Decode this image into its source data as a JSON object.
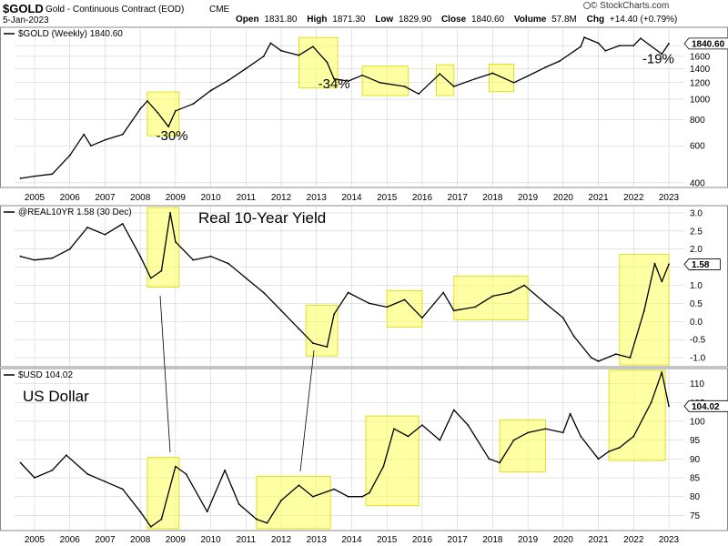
{
  "header": {
    "symbol": "$GOLD",
    "name": "Gold - Continuous Contract (EOD)",
    "exchange": "CME",
    "date": "5-Jan-2023",
    "stats": {
      "open_label": "Open",
      "open": "1831.80",
      "high_label": "High",
      "high": "1871.30",
      "low_label": "Low",
      "low": "1829.90",
      "close_label": "Close",
      "close": "1840.60",
      "volume_label": "Volume",
      "volume": "57.8M",
      "chg_label": "Chg",
      "chg": "+14.40 (+0.79%)"
    },
    "credit": "© StockCharts.com",
    "logo_icon": "stockcharts-logo-icon"
  },
  "year_ticks": [
    "2005",
    "2006",
    "2007",
    "2008",
    "2009",
    "2010",
    "2011",
    "2012",
    "2013",
    "2014",
    "2015",
    "2016",
    "2017",
    "2018",
    "2019",
    "2020",
    "2021",
    "2022",
    "2023"
  ],
  "colors": {
    "highlight": "#ffff66",
    "highlight_border": "#d8d800",
    "line": "#000000",
    "grid": "#c8c8c8",
    "badge_bg": "#ffffff"
  },
  "chart_data": [
    {
      "type": "line",
      "label": "$GOLD (Weekly) 1840.60",
      "ylabel": "",
      "scale": "log",
      "ylim": [
        380,
        2200
      ],
      "yticks": [
        400,
        600,
        800,
        1000,
        1200,
        1400,
        1600,
        1800
      ],
      "last_value": "1840.60",
      "series": [
        {
          "x": [
            2004.6,
            2005.0,
            2005.5,
            2006.0,
            2006.4,
            2006.6,
            2007.0,
            2007.5,
            2008.0,
            2008.2,
            2008.5,
            2008.8,
            2009.0,
            2009.5,
            2010.0,
            2010.5,
            2011.0,
            2011.5,
            2011.7,
            2012.0,
            2012.5,
            2012.9,
            2013.3,
            2013.5,
            2013.9,
            2014.3,
            2014.8,
            2015.5,
            2015.9,
            2016.5,
            2016.9,
            2017.5,
            2018.0,
            2018.6,
            2019.0,
            2019.5,
            2019.9,
            2020.5,
            2020.6,
            2021.0,
            2021.2,
            2021.6,
            2022.0,
            2022.2,
            2022.8,
            2023.0
          ],
          "y": [
            420,
            430,
            440,
            540,
            680,
            600,
            640,
            680,
            900,
            980,
            860,
            740,
            880,
            950,
            1100,
            1230,
            1400,
            1600,
            1850,
            1700,
            1620,
            1780,
            1500,
            1250,
            1220,
            1300,
            1200,
            1150,
            1060,
            1320,
            1150,
            1250,
            1330,
            1200,
            1290,
            1420,
            1520,
            1780,
            1970,
            1850,
            1700,
            1800,
            1800,
            1950,
            1640,
            1840
          ]
        }
      ],
      "annotations": [
        {
          "text": "-30%",
          "x": 2008.9,
          "y": 640
        },
        {
          "text": "-34%",
          "x": 2013.5,
          "y": 1130
        },
        {
          "text": "-19%",
          "x": 2022.7,
          "y": 1480
        }
      ],
      "highlights": [
        [
          2008.2,
          2009.1
        ],
        [
          2012.5,
          2013.6
        ],
        [
          2014.3,
          2015.6
        ],
        [
          2016.4,
          2016.9
        ],
        [
          2017.9,
          2018.6
        ]
      ]
    },
    {
      "type": "line",
      "label": "@REAL10YR 1.58 (30 Dec)",
      "title": "Real 10-Year Yield",
      "ylabel": "",
      "ylim": [
        -1.25,
        3.2
      ],
      "yticks": [
        3.0,
        2.5,
        2.0,
        1.5,
        1.0,
        0.5,
        0.0,
        -0.5,
        -1.0
      ],
      "ytick_labels": [
        "3.0",
        "2.5",
        "2.0",
        "1.5",
        "1.0",
        "0.5",
        "0.0",
        "-0.5",
        "-1.0"
      ],
      "last_value": "1.58",
      "series": [
        {
          "x": [
            2004.6,
            2005.0,
            2005.5,
            2006.0,
            2006.5,
            2007.0,
            2007.5,
            2008.0,
            2008.3,
            2008.6,
            2008.85,
            2009.0,
            2009.5,
            2010.0,
            2010.5,
            2011.0,
            2011.5,
            2012.0,
            2012.5,
            2012.9,
            2013.3,
            2013.5,
            2013.9,
            2014.5,
            2015.0,
            2015.5,
            2016.0,
            2016.6,
            2016.9,
            2017.5,
            2018.0,
            2018.5,
            2018.9,
            2019.5,
            2020.0,
            2020.3,
            2020.8,
            2021.0,
            2021.5,
            2021.9,
            2022.3,
            2022.6,
            2022.8,
            2023.0
          ],
          "y": [
            1.8,
            1.7,
            1.75,
            2.0,
            2.6,
            2.4,
            2.7,
            1.8,
            1.2,
            1.4,
            3.0,
            2.2,
            1.7,
            1.8,
            1.6,
            1.2,
            0.8,
            0.3,
            -0.2,
            -0.6,
            -0.7,
            0.2,
            0.8,
            0.5,
            0.4,
            0.6,
            0.1,
            0.8,
            0.3,
            0.4,
            0.7,
            0.8,
            1.0,
            0.5,
            0.1,
            -0.4,
            -1.0,
            -1.1,
            -0.9,
            -1.0,
            0.3,
            1.6,
            1.1,
            1.58
          ]
        }
      ],
      "highlights": [
        [
          2008.2,
          2009.1
        ],
        [
          2012.7,
          2013.6
        ],
        [
          2015.0,
          2016.0
        ],
        [
          2016.9,
          2019.0
        ],
        [
          2021.6,
          2023.0
        ]
      ]
    },
    {
      "type": "line",
      "label": "$USD 104.02",
      "title": "US Dollar",
      "ylabel": "",
      "ylim": [
        71,
        114
      ],
      "yticks": [
        110,
        105,
        100,
        95,
        90,
        85,
        80,
        75
      ],
      "last_value": "104.02",
      "series": [
        {
          "x": [
            2004.6,
            2005.0,
            2005.5,
            2005.9,
            2006.5,
            2007.0,
            2007.5,
            2008.0,
            2008.3,
            2008.6,
            2009.0,
            2009.3,
            2009.9,
            2010.4,
            2010.8,
            2011.3,
            2011.6,
            2012.0,
            2012.5,
            2012.9,
            2013.5,
            2013.9,
            2014.3,
            2014.5,
            2014.9,
            2015.2,
            2015.6,
            2016.0,
            2016.5,
            2016.9,
            2017.3,
            2017.9,
            2018.2,
            2018.6,
            2019.0,
            2019.5,
            2020.0,
            2020.2,
            2020.5,
            2021.0,
            2021.3,
            2021.6,
            2022.0,
            2022.5,
            2022.8,
            2023.0
          ],
          "y": [
            89,
            85,
            87,
            91,
            86,
            84,
            82,
            76,
            72,
            74,
            88,
            86,
            76,
            87,
            78,
            74,
            73,
            79,
            83,
            80,
            82,
            80,
            80,
            81,
            88,
            98,
            96,
            99,
            95,
            103,
            99,
            90,
            89,
            95,
            97,
            98,
            97,
            102,
            96,
            90,
            92,
            93,
            96,
            105,
            113,
            104.02
          ]
        }
      ],
      "highlights": [
        [
          2008.2,
          2009.1
        ],
        [
          2011.3,
          2013.4
        ],
        [
          2014.4,
          2015.9
        ],
        [
          2018.2,
          2019.5
        ],
        [
          2021.3,
          2022.9
        ]
      ]
    }
  ]
}
